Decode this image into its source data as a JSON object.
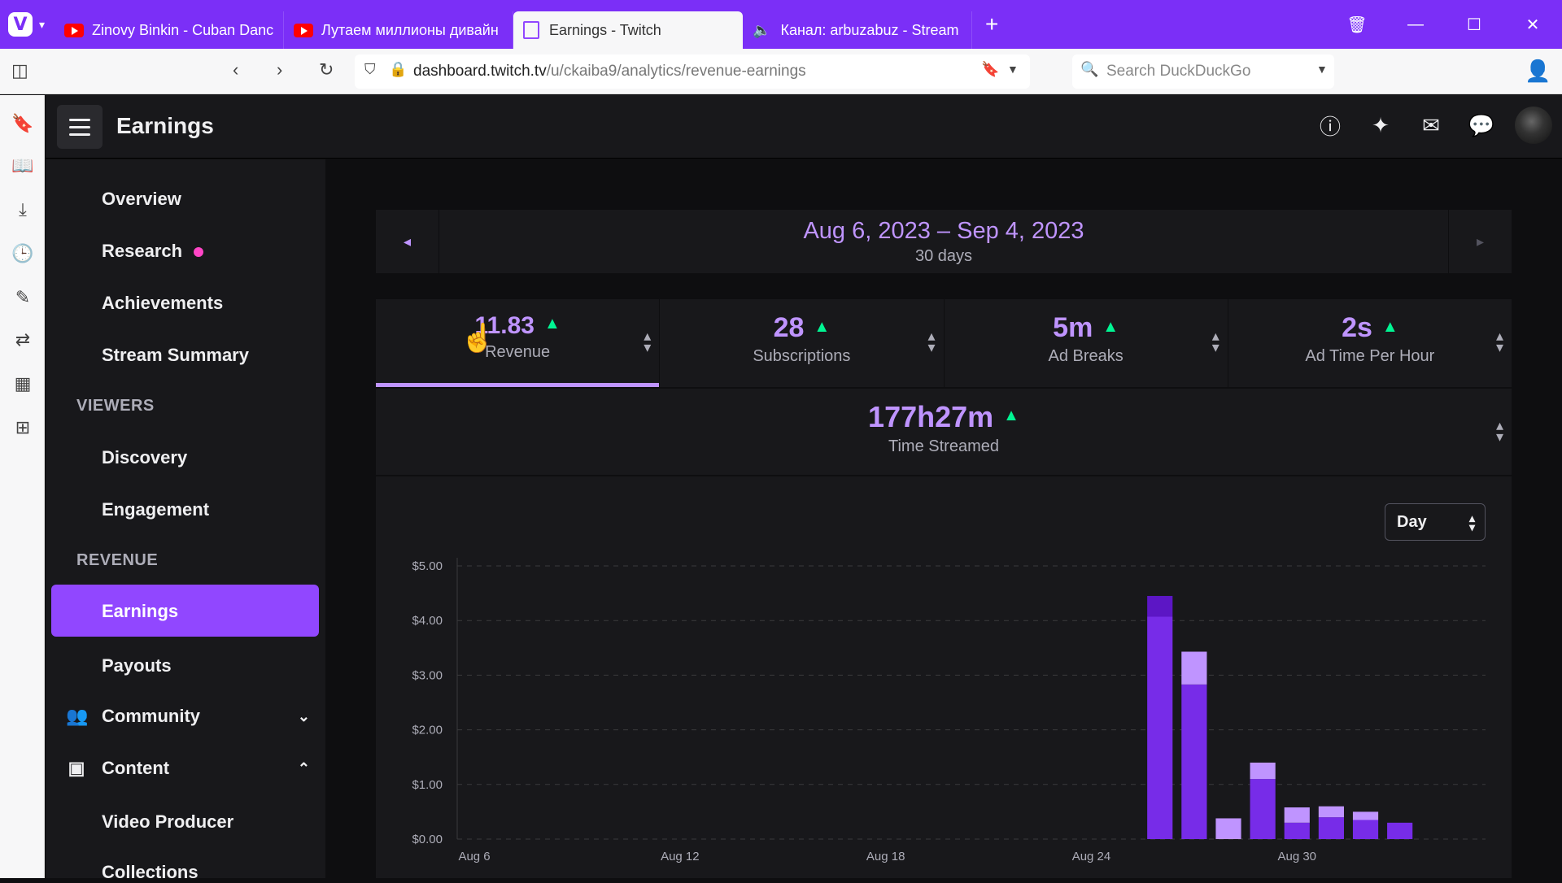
{
  "browser": {
    "tabs": [
      {
        "label": "Zinovy Binkin - Cuban Dance",
        "kind": "youtube"
      },
      {
        "label": "Лутаем миллионы дивайн",
        "kind": "youtube"
      },
      {
        "label": "Earnings - Twitch",
        "kind": "twitch",
        "active": true
      },
      {
        "label": "Канал: arbuzabuz - Stream",
        "kind": "audio"
      }
    ],
    "url_domain": "dashboard.twitch.tv",
    "url_path": "/u/ckaiba9/analytics/revenue-earnings",
    "search_placeholder": "Search DuckDuckGo"
  },
  "header": {
    "title": "Earnings"
  },
  "sidebar": {
    "items": [
      {
        "label": "Overview"
      },
      {
        "label": "Research"
      },
      {
        "label": "Achievements"
      },
      {
        "label": "Stream Summary"
      }
    ],
    "viewers_heading": "VIEWERS",
    "viewers_items": [
      {
        "label": "Discovery"
      },
      {
        "label": "Engagement"
      }
    ],
    "revenue_heading": "REVENUE",
    "revenue_items": [
      {
        "label": "Earnings"
      },
      {
        "label": "Payouts"
      }
    ],
    "groups": [
      {
        "label": "Community"
      },
      {
        "label": "Content"
      }
    ],
    "content_items": [
      {
        "label": "Video Producer"
      },
      {
        "label": "Collections"
      }
    ]
  },
  "date_range": {
    "range": "Aug 6, 2023 – Sep 4, 2023",
    "days": "30 days"
  },
  "stats": [
    {
      "value": "11.83",
      "label": "Revenue"
    },
    {
      "value": "28",
      "label": "Subscriptions"
    },
    {
      "value": "5m",
      "label": "Ad Breaks"
    },
    {
      "value": "2s",
      "label": "Ad Time Per Hour"
    }
  ],
  "time_streamed": {
    "value": "177h27m",
    "label": "Time Streamed"
  },
  "granularity": "Day",
  "colors": {
    "accent": "#9147ff",
    "accent_light": "#bf94ff",
    "positive": "#00f593",
    "bar_dark": "#772ce8",
    "bar_light": "#bf94ff",
    "bar_darkest": "#5c16c5"
  },
  "chart_data": {
    "type": "bar",
    "stacked": true,
    "y_ticks": [
      "$5.00",
      "$4.00",
      "$3.00",
      "$2.00",
      "$1.00",
      "$0.00"
    ],
    "ylim": [
      0,
      5
    ],
    "x_ticks": [
      "Aug 6",
      "Aug 12",
      "Aug 18",
      "Aug 24",
      "Aug 30"
    ],
    "categories": [
      "Aug 6",
      "Aug 7",
      "Aug 8",
      "Aug 9",
      "Aug 10",
      "Aug 11",
      "Aug 12",
      "Aug 13",
      "Aug 14",
      "Aug 15",
      "Aug 16",
      "Aug 17",
      "Aug 18",
      "Aug 19",
      "Aug 20",
      "Aug 21",
      "Aug 22",
      "Aug 23",
      "Aug 24",
      "Aug 25",
      "Aug 26",
      "Aug 27",
      "Aug 28",
      "Aug 29",
      "Aug 30",
      "Aug 31",
      "Sep 1",
      "Sep 2",
      "Sep 3",
      "Sep 4"
    ],
    "series": [
      {
        "color": "#772ce8",
        "values": [
          0,
          0,
          0,
          0,
          0,
          0,
          0,
          0,
          0,
          0,
          0,
          0,
          0,
          0,
          0,
          0,
          0,
          0,
          0,
          0,
          4.07,
          2.83,
          0,
          1.1,
          0.3,
          0.4,
          0.35,
          0.3,
          0,
          0
        ]
      },
      {
        "color": "#bf94ff",
        "values": [
          0,
          0,
          0,
          0,
          0,
          0,
          0,
          0,
          0,
          0,
          0,
          0,
          0,
          0,
          0,
          0,
          0,
          0,
          0,
          0,
          0,
          0.6,
          0.38,
          0.3,
          0.28,
          0.2,
          0.15,
          0,
          0,
          0
        ]
      },
      {
        "color": "#5c16c5",
        "values": [
          0,
          0,
          0,
          0,
          0,
          0,
          0,
          0,
          0,
          0,
          0,
          0,
          0,
          0,
          0,
          0,
          0,
          0,
          0,
          0,
          0.38,
          0,
          0,
          0,
          0,
          0,
          0,
          0,
          0,
          0
        ]
      }
    ]
  }
}
